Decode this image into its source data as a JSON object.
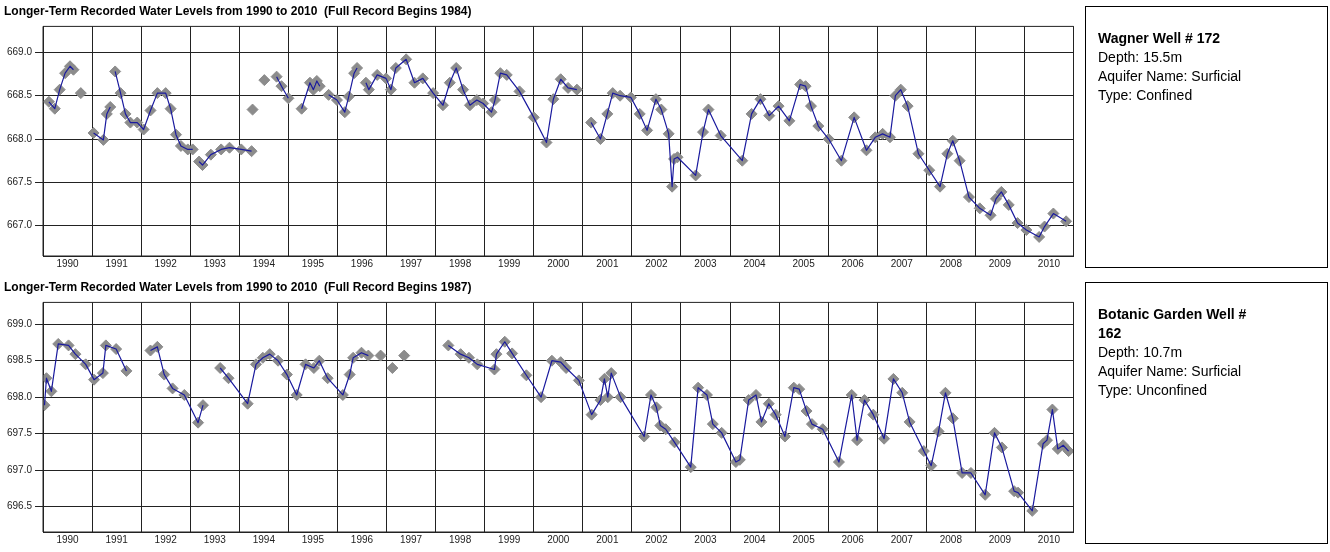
{
  "chart_data": [
    {
      "type": "line",
      "title": "Longer-Term Recorded Water Levels from 1990 to 2010  (Full Record Begins 1984)",
      "x": [
        1990.12,
        1990.24,
        1990.34,
        1990.45,
        1990.55,
        1990.62,
        1990.77,
        1991.03,
        1991.23,
        1991.3,
        1991.37,
        1991.42,
        1991.47,
        1991.58,
        1991.68,
        1991.78,
        1991.92,
        1992.05,
        1992.19,
        1992.33,
        1992.5,
        1992.6,
        1992.71,
        1992.81,
        1992.95,
        1993.05,
        1993.12,
        1993.18,
        1993.25,
        1993.42,
        1993.63,
        1993.8,
        1994.04,
        1994.25,
        1994.27,
        1994.51,
        1994.76,
        1994.86,
        1995.0,
        1995.13,
        1995.27,
        1995.44,
        1995.51,
        1995.58,
        1995.64,
        1995.73,
        1995.82,
        1995.99,
        1996.15,
        1996.23,
        1996.34,
        1996.4,
        1996.49,
        1996.58,
        1996.64,
        1996.81,
        1996.99,
        1997.09,
        1997.19,
        1997.4,
        1997.57,
        1997.74,
        1997.95,
        1998.15,
        1998.29,
        1998.42,
        1998.56,
        1998.7,
        1998.84,
        1998.97,
        1999.14,
        1999.21,
        1999.32,
        1999.45,
        1999.71,
        2000.0,
        2000.26,
        2000.4,
        2000.55,
        2000.7,
        2000.88,
        2001.0,
        2001.17,
        2001.36,
        2001.5,
        2001.61,
        2001.76,
        2001.98,
        2002.16,
        2002.31,
        2002.49,
        2002.6,
        2002.75,
        2002.82,
        2002.86,
        2002.93,
        2003.3,
        2003.45,
        2003.56,
        2003.81,
        2004.25,
        2004.44,
        2004.62,
        2004.8,
        2004.99,
        2005.21,
        2005.43,
        2005.54,
        2005.65,
        2005.8,
        2006.01,
        2006.27,
        2006.53,
        2006.78,
        2006.96,
        2007.11,
        2007.26,
        2007.37,
        2007.48,
        2007.62,
        2007.84,
        2008.06,
        2008.28,
        2008.43,
        2008.54,
        2008.68,
        2008.87,
        2009.09,
        2009.31,
        2009.42,
        2009.53,
        2009.68,
        2009.86,
        2010.04,
        2010.3,
        2010.41,
        2010.59,
        2010.85
      ],
      "series": [
        {
          "type": "scatter",
          "marker": "diamond",
          "color": "#8c8c8c",
          "values": [
            668.43,
            668.35,
            668.57,
            668.76,
            668.84,
            668.8,
            668.53,
            668.07,
            667.99,
            668.29,
            668.37,
            null,
            668.78,
            668.53,
            668.29,
            668.19,
            668.19,
            668.11,
            668.33,
            668.53,
            668.53,
            668.35,
            668.05,
            667.92,
            667.88,
            667.88,
            null,
            667.74,
            667.7,
            667.82,
            667.88,
            667.9,
            667.88,
            667.86,
            668.34,
            668.68,
            668.72,
            668.61,
            668.47,
            null,
            668.35,
            668.65,
            668.57,
            668.67,
            668.61,
            null,
            668.51,
            668.45,
            668.31,
            668.49,
            668.76,
            668.82,
            null,
            668.65,
            668.57,
            668.74,
            668.7,
            668.57,
            668.82,
            668.92,
            668.65,
            668.7,
            668.53,
            668.39,
            668.65,
            668.82,
            668.57,
            668.39,
            668.45,
            668.41,
            668.31,
            668.45,
            668.76,
            668.74,
            668.55,
            668.25,
            667.96,
            668.46,
            668.69,
            668.59,
            668.57,
            null,
            668.19,
            668.0,
            668.29,
            668.53,
            668.5,
            668.48,
            668.29,
            668.1,
            668.46,
            668.34,
            668.06,
            667.45,
            667.77,
            667.79,
            667.58,
            668.08,
            668.34,
            668.04,
            667.75,
            668.29,
            668.46,
            668.27,
            668.38,
            668.21,
            668.63,
            668.61,
            668.38,
            668.15,
            668.0,
            667.75,
            668.25,
            667.87,
            668.02,
            668.06,
            668.02,
            668.5,
            668.57,
            668.38,
            667.83,
            667.64,
            667.45,
            667.83,
            667.98,
            667.75,
            667.33,
            667.2,
            667.12,
            667.31,
            667.39,
            667.24,
            667.03,
            666.95,
            666.87,
            666.99,
            667.14,
            667.05
          ]
        },
        {
          "type": "line",
          "color": "#1a1a9e",
          "values": [
            668.43,
            668.35,
            668.57,
            668.76,
            668.84,
            668.8,
            null,
            668.07,
            667.99,
            668.29,
            668.37,
            null,
            668.78,
            668.53,
            668.29,
            668.19,
            668.19,
            668.11,
            668.33,
            668.53,
            668.53,
            668.35,
            668.05,
            667.92,
            667.88,
            667.88,
            null,
            667.74,
            667.7,
            667.82,
            667.88,
            667.9,
            667.88,
            667.86,
            null,
            null,
            668.72,
            668.61,
            668.47,
            null,
            668.35,
            668.65,
            668.57,
            668.67,
            668.61,
            null,
            668.51,
            668.45,
            668.31,
            668.49,
            668.76,
            668.82,
            null,
            668.65,
            668.57,
            668.74,
            668.7,
            668.57,
            668.82,
            668.92,
            668.65,
            668.7,
            668.53,
            668.39,
            668.65,
            668.82,
            668.57,
            668.39,
            668.45,
            668.41,
            668.31,
            668.45,
            668.76,
            668.74,
            668.55,
            668.25,
            667.96,
            668.46,
            668.69,
            668.59,
            668.57,
            null,
            668.19,
            668.0,
            668.29,
            668.53,
            668.5,
            668.48,
            668.29,
            668.1,
            668.46,
            668.34,
            668.06,
            667.45,
            667.77,
            667.79,
            667.58,
            668.08,
            668.34,
            668.04,
            667.75,
            668.29,
            668.46,
            668.27,
            668.38,
            668.21,
            668.63,
            668.61,
            668.38,
            668.15,
            668.0,
            667.75,
            668.25,
            667.87,
            668.02,
            668.06,
            668.02,
            668.5,
            668.57,
            668.38,
            667.83,
            667.64,
            667.45,
            667.83,
            667.98,
            667.75,
            667.33,
            667.2,
            667.12,
            667.31,
            667.39,
            667.24,
            667.03,
            666.95,
            666.87,
            666.99,
            667.14,
            667.05
          ]
        }
      ],
      "xlim": [
        1990,
        2011
      ],
      "xticks": [
        {
          "value": 1990.5,
          "label": "1990"
        },
        {
          "value": 1991.5,
          "label": "1991"
        },
        {
          "value": 1992.5,
          "label": "1992"
        },
        {
          "value": 1993.5,
          "label": "1993"
        },
        {
          "value": 1994.5,
          "label": "1994"
        },
        {
          "value": 1995.5,
          "label": "1995"
        },
        {
          "value": 1996.5,
          "label": "1996"
        },
        {
          "value": 1997.5,
          "label": "1997"
        },
        {
          "value": 1998.5,
          "label": "1998"
        },
        {
          "value": 1999.5,
          "label": "1999"
        },
        {
          "value": 2000.5,
          "label": "2000"
        },
        {
          "value": 2001.5,
          "label": "2001"
        },
        {
          "value": 2002.5,
          "label": "2002"
        },
        {
          "value": 2003.5,
          "label": "2003"
        },
        {
          "value": 2004.5,
          "label": "2004"
        },
        {
          "value": 2005.5,
          "label": "2005"
        },
        {
          "value": 2006.5,
          "label": "2006"
        },
        {
          "value": 2007.5,
          "label": "2007"
        },
        {
          "value": 2008.5,
          "label": "2008"
        },
        {
          "value": 2009.5,
          "label": "2009"
        },
        {
          "value": 2010.5,
          "label": "2010"
        }
      ],
      "ylim": [
        666.65,
        669.3
      ],
      "yticks": [
        {
          "value": 667,
          "label": "667.0"
        },
        {
          "value": 667.5,
          "label": "667.5"
        },
        {
          "value": 668,
          "label": "668.0"
        },
        {
          "value": 668.5,
          "label": "668.5"
        },
        {
          "value": 669,
          "label": "669.0"
        }
      ],
      "grid": true,
      "legend": false
    },
    {
      "type": "other",
      "title": "Wagner Well # 172",
      "annotations": [
        "Depth: 15.5m",
        "Aquifer Name: Surficial",
        "Type: Confined"
      ]
    },
    {
      "type": "line",
      "title": "Longer-Term Recorded Water Levels from 1990 to 2010  (Full Record Begins 1987)",
      "x": [
        1990.03,
        1990.07,
        1990.17,
        1990.31,
        1990.52,
        1990.66,
        1990.87,
        1991.04,
        1991.22,
        1991.28,
        1991.49,
        1991.7,
        1991.9,
        1992.19,
        1992.33,
        1992.47,
        1992.64,
        1992.88,
        1993.16,
        1993.26,
        1993.4,
        1993.61,
        1993.78,
        1994.17,
        1994.34,
        1994.48,
        1994.62,
        1994.79,
        1994.97,
        1995.17,
        1995.35,
        1995.52,
        1995.63,
        1995.8,
        1996.11,
        1996.25,
        1996.32,
        1996.49,
        1996.63,
        1996.88,
        1997.12,
        1997.36,
        1998.26,
        1998.51,
        1998.68,
        1998.85,
        1999.2,
        1999.24,
        1999.41,
        1999.56,
        1999.85,
        2000.15,
        2000.37,
        2000.55,
        2000.66,
        2000.92,
        2001.18,
        2001.36,
        2001.44,
        2001.51,
        2001.58,
        2001.77,
        2002.25,
        2002.39,
        2002.5,
        2002.58,
        2002.69,
        2002.87,
        2003.2,
        2003.35,
        2003.53,
        2003.65,
        2003.83,
        2004.12,
        2004.2,
        2004.38,
        2004.53,
        2004.64,
        2004.79,
        2004.93,
        2005.12,
        2005.3,
        2005.41,
        2005.56,
        2005.67,
        2005.89,
        2006.22,
        2006.48,
        2006.59,
        2006.74,
        2006.92,
        2007.14,
        2007.33,
        2007.51,
        2007.66,
        2007.95,
        2008.1,
        2008.25,
        2008.39,
        2008.54,
        2008.73,
        2008.91,
        2009.2,
        2009.39,
        2009.54,
        2009.79,
        2009.87,
        2010.16,
        2010.38,
        2010.46,
        2010.57,
        2010.68,
        2010.79,
        2010.9
      ],
      "series": [
        {
          "type": "scatter",
          "marker": "diamond",
          "color": "#8c8c8c",
          "values": [
            697.89,
            698.26,
            698.08,
            698.73,
            698.71,
            698.59,
            698.45,
            698.24,
            698.33,
            698.71,
            698.66,
            698.36,
            null,
            698.64,
            698.69,
            698.31,
            698.12,
            698.03,
            697.65,
            697.89,
            null,
            698.4,
            698.26,
            697.91,
            698.45,
            698.54,
            698.59,
            698.5,
            698.31,
            698.03,
            698.45,
            698.4,
            698.5,
            698.26,
            698.03,
            698.31,
            698.54,
            698.61,
            698.57,
            698.57,
            698.4,
            698.57,
            698.71,
            698.59,
            698.54,
            698.45,
            698.38,
            698.59,
            698.76,
            698.6,
            698.3,
            698.0,
            698.5,
            698.48,
            698.4,
            698.23,
            697.76,
            697.96,
            698.25,
            698.0,
            698.33,
            698.0,
            697.46,
            698.03,
            697.86,
            697.61,
            697.56,
            697.38,
            697.04,
            698.13,
            698.03,
            697.63,
            697.51,
            697.11,
            697.14,
            697.96,
            698.03,
            697.66,
            697.91,
            697.76,
            697.46,
            698.13,
            698.11,
            697.81,
            697.63,
            697.56,
            697.11,
            698.03,
            697.41,
            697.96,
            697.76,
            697.43,
            698.25,
            698.06,
            697.66,
            697.26,
            697.06,
            697.53,
            698.06,
            697.71,
            696.96,
            696.96,
            696.66,
            697.51,
            697.31,
            696.71,
            696.69,
            696.44,
            697.36,
            697.41,
            697.83,
            697.29,
            697.34,
            697.26
          ]
        },
        {
          "type": "line",
          "color": "#1a1a9e",
          "values": [
            697.89,
            698.26,
            698.08,
            698.73,
            698.71,
            698.59,
            698.45,
            698.24,
            698.33,
            698.71,
            698.66,
            698.36,
            null,
            698.64,
            698.69,
            698.31,
            698.12,
            698.03,
            697.65,
            697.89,
            null,
            698.4,
            698.26,
            697.91,
            698.45,
            698.54,
            698.59,
            698.5,
            698.31,
            698.03,
            698.45,
            698.4,
            698.5,
            698.26,
            698.03,
            698.31,
            698.54,
            698.61,
            698.57,
            null,
            null,
            null,
            698.71,
            698.59,
            698.54,
            698.45,
            698.38,
            698.59,
            698.76,
            698.6,
            698.3,
            698.0,
            698.5,
            698.48,
            698.4,
            698.23,
            697.76,
            697.96,
            698.25,
            698.0,
            698.33,
            698.0,
            697.46,
            698.03,
            697.86,
            697.61,
            697.56,
            697.38,
            697.04,
            698.13,
            698.03,
            697.63,
            697.51,
            697.11,
            697.14,
            697.96,
            698.03,
            697.66,
            697.91,
            697.76,
            697.46,
            698.13,
            698.11,
            697.81,
            697.63,
            697.56,
            697.11,
            698.03,
            697.41,
            697.96,
            697.76,
            697.43,
            698.25,
            698.06,
            697.66,
            697.26,
            697.06,
            697.53,
            698.06,
            697.71,
            696.96,
            696.96,
            696.66,
            697.51,
            697.31,
            696.71,
            696.69,
            696.44,
            697.36,
            697.41,
            697.83,
            697.29,
            697.34,
            697.26
          ]
        }
      ],
      "xlim": [
        1990,
        2011
      ],
      "xticks": [
        {
          "value": 1990.5,
          "label": "1990"
        },
        {
          "value": 1991.5,
          "label": "1991"
        },
        {
          "value": 1992.5,
          "label": "1992"
        },
        {
          "value": 1993.5,
          "label": "1993"
        },
        {
          "value": 1994.5,
          "label": "1994"
        },
        {
          "value": 1995.5,
          "label": "1995"
        },
        {
          "value": 1996.5,
          "label": "1996"
        },
        {
          "value": 1997.5,
          "label": "1997"
        },
        {
          "value": 1998.5,
          "label": "1998"
        },
        {
          "value": 1999.5,
          "label": "1999"
        },
        {
          "value": 2000.5,
          "label": "2000"
        },
        {
          "value": 2001.5,
          "label": "2001"
        },
        {
          "value": 2002.5,
          "label": "2002"
        },
        {
          "value": 2003.5,
          "label": "2003"
        },
        {
          "value": 2004.5,
          "label": "2004"
        },
        {
          "value": 2005.5,
          "label": "2005"
        },
        {
          "value": 2006.5,
          "label": "2006"
        },
        {
          "value": 2007.5,
          "label": "2007"
        },
        {
          "value": 2008.5,
          "label": "2008"
        },
        {
          "value": 2009.5,
          "label": "2009"
        },
        {
          "value": 2010.5,
          "label": "2010"
        }
      ],
      "ylim": [
        696.15,
        699.3
      ],
      "yticks": [
        {
          "value": 696.5,
          "label": "696.5"
        },
        {
          "value": 697,
          "label": "697.0"
        },
        {
          "value": 697.5,
          "label": "697.5"
        },
        {
          "value": 698,
          "label": "698.0"
        },
        {
          "value": 698.5,
          "label": "698.5"
        },
        {
          "value": 699,
          "label": "699.0"
        }
      ],
      "grid": true,
      "legend": false
    },
    {
      "type": "other",
      "title": "Botanic Garden Well # 162",
      "annotations": [
        "Depth: 10.7m",
        "Aquifer Name: Surficial",
        "Type: Unconfined"
      ]
    }
  ]
}
